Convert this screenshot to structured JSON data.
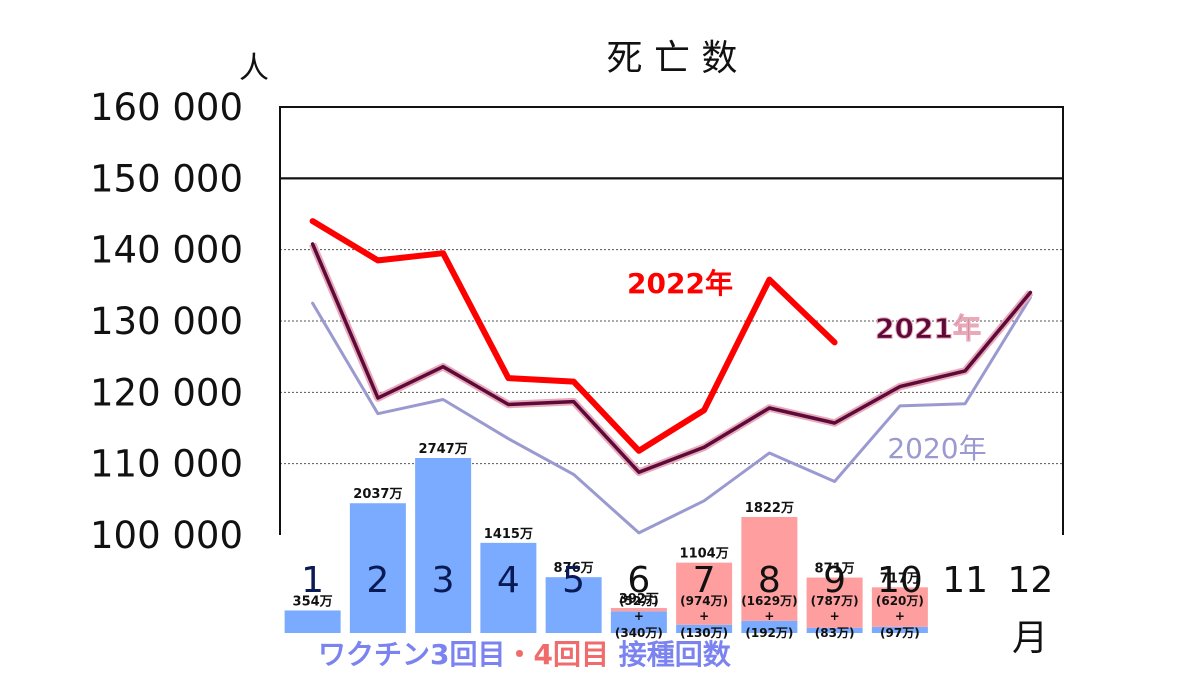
{
  "chart_data": {
    "type": "line",
    "title": "死 亡 数",
    "ylabel": "人",
    "xlabel": "月",
    "ylim": [
      100000,
      160000
    ],
    "y_ticks": [
      {
        "value": 160000,
        "label": "160 000"
      },
      {
        "value": 150000,
        "label": "150 000"
      },
      {
        "value": 140000,
        "label": "140 000"
      },
      {
        "value": 130000,
        "label": "130 000"
      },
      {
        "value": 120000,
        "label": "120 000"
      },
      {
        "value": 110000,
        "label": "110 000"
      },
      {
        "value": 100000,
        "label": "100 000"
      }
    ],
    "categories": [
      "1",
      "2",
      "3",
      "4",
      "5",
      "6",
      "7",
      "8",
      "9",
      "10",
      "11",
      "12"
    ],
    "series": [
      {
        "name": "2022年",
        "color": "#ff0000",
        "values": [
          144000,
          138500,
          139500,
          122000,
          121500,
          111800,
          117500,
          135800,
          127000,
          null,
          null,
          null
        ]
      },
      {
        "name": "2021年",
        "color": "#5c0a3a",
        "values": [
          140800,
          119200,
          123600,
          118300,
          118700,
          108800,
          112300,
          117800,
          115700,
          120800,
          123000,
          134000
        ]
      },
      {
        "name": "2020年",
        "color": "#9a9ad0",
        "values": [
          132500,
          117000,
          119000,
          113500,
          108500,
          100300,
          104800,
          111500,
          107500,
          118100,
          118400,
          133300
        ]
      }
    ],
    "grid": true,
    "vaccination": {
      "caption_part1": "ワクチン3回目",
      "caption_sep": "・",
      "caption_part2": "4回目",
      "caption_part3": " 接種回数",
      "colors": {
        "dose3": "#7aabff",
        "dose4": "#ff9e9e"
      },
      "bars": [
        {
          "month": "1",
          "total": 354,
          "total_label": "354万",
          "dose3": 354,
          "dose4": 0
        },
        {
          "month": "2",
          "total": 2037,
          "total_label": "2037万",
          "dose3": 2037,
          "dose4": 0
        },
        {
          "month": "3",
          "total": 2747,
          "total_label": "2747万",
          "dose3": 2747,
          "dose4": 0
        },
        {
          "month": "4",
          "total": 1415,
          "total_label": "1415万",
          "dose3": 1415,
          "dose4": 0
        },
        {
          "month": "5",
          "total": 876,
          "total_label": "876万",
          "dose3": 876,
          "dose4": 0
        },
        {
          "month": "6",
          "total": 392,
          "total_label": "392万",
          "dose3": 340,
          "dose4": 52,
          "dose4_label": "(52万)",
          "dose3_label": "(340万)"
        },
        {
          "month": "7",
          "total": 1104,
          "total_label": "1104万",
          "dose3": 130,
          "dose4": 974,
          "dose4_label": "(974万)",
          "dose3_label": "(130万)"
        },
        {
          "month": "8",
          "total": 1822,
          "total_label": "1822万",
          "dose3": 192,
          "dose4": 1629,
          "dose4_label": "(1629万)",
          "dose3_label": "(192万)"
        },
        {
          "month": "9",
          "total": 871,
          "total_label": "871万",
          "dose3": 83,
          "dose4": 787,
          "dose4_label": "(787万)",
          "dose3_label": "(83万)"
        },
        {
          "month": "10",
          "total": 717,
          "total_label": "717万",
          "dose3": 97,
          "dose4": 620,
          "dose4_label": "(620万)",
          "dose3_label": "(97万)"
        }
      ]
    }
  }
}
